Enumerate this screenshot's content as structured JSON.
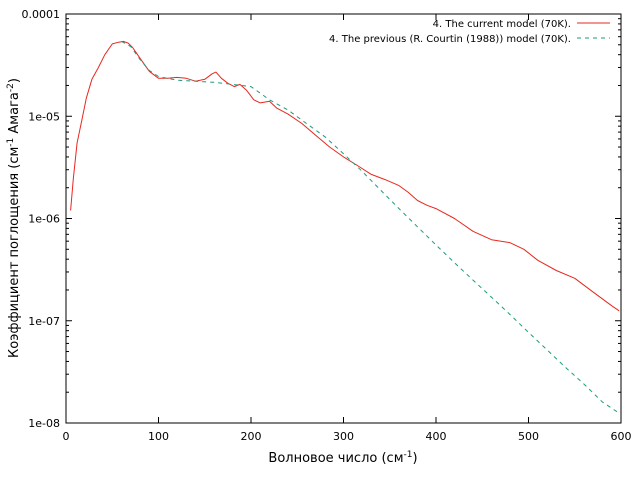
{
  "chart_data": {
    "type": "line",
    "xlabel": "Волновое число (см",
    "xlabel_sup": "-1",
    "xlabel_end": ")",
    "ylabel": "Коэффициент поглощения (см",
    "ylabel_sup1": "-1",
    "ylabel_mid": " Амага",
    "ylabel_sup2": "-2",
    "ylabel_end": ")",
    "xlim": [
      0,
      600
    ],
    "ylim": [
      1e-08,
      0.0001
    ],
    "yscale": "log",
    "grid": false,
    "legend_position": "top-right",
    "x_ticks": [
      0,
      100,
      200,
      300,
      400,
      500,
      600
    ],
    "x_tick_labels": [
      "0",
      "100",
      "200",
      "300",
      "400",
      "500",
      "600"
    ],
    "y_ticks": [
      1e-08,
      1e-07,
      1e-06,
      1e-05,
      0.0001
    ],
    "y_tick_labels": [
      "1e-08",
      "1e-07",
      "1e-06",
      "1e-05",
      "0.0001"
    ],
    "series": [
      {
        "name": "4. The current model (70K).",
        "color": "#e8281e",
        "dash": "solid",
        "x": [
          5,
          8,
          12,
          17,
          22,
          28,
          35,
          42,
          50,
          57,
          62,
          67,
          72,
          80,
          90,
          100,
          110,
          120,
          130,
          140,
          150,
          158,
          162,
          168,
          175,
          182,
          188,
          195,
          203,
          210,
          220,
          228,
          240,
          255,
          270,
          285,
          300,
          315,
          330,
          345,
          360,
          370,
          380,
          390,
          400,
          420,
          440,
          460,
          480,
          495,
          510,
          530,
          550,
          570,
          590,
          598
        ],
        "y": [
          1.2e-06,
          2.5e-06,
          5.5e-06,
          9e-06,
          1.5e-05,
          2.3e-05,
          3e-05,
          4e-05,
          5.1e-05,
          5.3e-05,
          5.4e-05,
          5.2e-05,
          4.7e-05,
          3.7e-05,
          2.75e-05,
          2.35e-05,
          2.35e-05,
          2.4e-05,
          2.35e-05,
          2.2e-05,
          2.3e-05,
          2.6e-05,
          2.7e-05,
          2.35e-05,
          2.1e-05,
          1.95e-05,
          2.05e-05,
          1.8e-05,
          1.45e-05,
          1.35e-05,
          1.4e-05,
          1.2e-05,
          1.05e-05,
          8.5e-06,
          6.5e-06,
          5e-06,
          4e-06,
          3.3e-06,
          2.7e-06,
          2.4e-06,
          2.1e-06,
          1.8e-06,
          1.5e-06,
          1.35e-06,
          1.25e-06,
          1e-06,
          7.5e-07,
          6.2e-07,
          5.8e-07,
          5e-07,
          3.9e-07,
          3.1e-07,
          2.6e-07,
          1.9e-07,
          1.4e-07,
          1.25e-07
        ]
      },
      {
        "name": "4. The previous (R. Courtin (1988)) model (70K).",
        "color": "#1a9c7e",
        "dash": "dashed",
        "x": [
          60,
          70,
          80,
          90,
          100,
          120,
          140,
          160,
          180,
          200,
          220,
          240,
          260,
          280,
          300,
          320,
          340,
          360,
          380,
          400,
          420,
          440,
          460,
          480,
          500,
          520,
          540,
          560,
          580,
          598
        ],
        "y": [
          5.4e-05,
          4.8e-05,
          3.6e-05,
          2.8e-05,
          2.45e-05,
          2.25e-05,
          2.2e-05,
          2.15e-05,
          2.05e-05,
          1.95e-05,
          1.45e-05,
          1.15e-05,
          8.5e-06,
          6.3e-06,
          4.3e-06,
          2.9e-06,
          1.9e-06,
          1.25e-06,
          8.3e-07,
          5.5e-07,
          3.7e-07,
          2.5e-07,
          1.7e-07,
          1.15e-07,
          7.7e-08,
          5.2e-08,
          3.5e-08,
          2.4e-08,
          1.6e-08,
          1.25e-08
        ]
      }
    ]
  }
}
